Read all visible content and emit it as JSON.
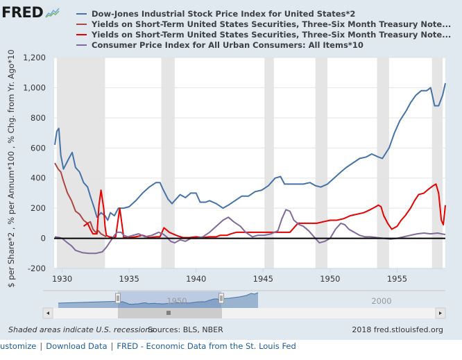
{
  "logo": {
    "text": "FRED",
    "icon": "chart-line-icon"
  },
  "legend": [
    {
      "label": "Dow-Jones Industrial Stock Price Index for United States*2",
      "color": "#4572a7"
    },
    {
      "label": "Yields on Short-Term United States Securities, Three-Six Month Treasury Note...",
      "color": "#aa4643"
    },
    {
      "label": "Yields on Short-Term United States Securities, Three-Six Month Treasury Note...",
      "color": "#e60000"
    },
    {
      "label": "Consumer Price Index for All Urban Consumers: All Items*10",
      "color": "#80699b"
    }
  ],
  "footer": {
    "recessions_note": "Shaded areas indicate U.S. recessions",
    "sources": "Sources: BLS, NBER",
    "copyright": "2018 fred.stlouisfed.org"
  },
  "links": [
    {
      "label": "ustomize"
    },
    {
      "label": "Download Data"
    },
    {
      "label": "FRED - Economic Data from the St. Louis Fed"
    }
  ],
  "link_separator": "|",
  "navigator": {
    "labels": [
      "1950",
      "2000"
    ],
    "range_start_year": 1929.4,
    "range_end_year": 1958.6,
    "handle_glyph": "||",
    "scrollbar_grip": "|||"
  },
  "chart_data": {
    "type": "line",
    "title": "",
    "xlabel": "",
    "ylabel": "$ per Share*2 , % per Annum*100 , % Chg. from Yr. Ago*10",
    "xlim": [
      1929.4,
      1958.6
    ],
    "ylim": [
      -200,
      1200
    ],
    "yticks": [
      -200,
      0,
      200,
      400,
      600,
      800,
      1000,
      1200
    ],
    "ytick_labels": [
      "-200",
      "0",
      "200",
      "400",
      "600",
      "800",
      "1,000",
      "1,200"
    ],
    "xticks": [
      1930,
      1935,
      1940,
      1945,
      1950,
      1955
    ],
    "xtick_labels": [
      "1930",
      "1935",
      "1940",
      "1945",
      "1950",
      "1955"
    ],
    "grid": true,
    "zero_line": true,
    "legend_position": "top",
    "recessions": [
      [
        1929.6,
        1933.2
      ],
      [
        1937.4,
        1938.4
      ],
      [
        1945.1,
        1945.8
      ],
      [
        1948.9,
        1949.8
      ],
      [
        1953.5,
        1954.4
      ],
      [
        1957.6,
        1958.4
      ]
    ],
    "series": [
      {
        "name": "Dow-Jones Industrial Stock Price Index for United States*2",
        "color": "#4572a7",
        "x": [
          1929.45,
          1929.6,
          1929.75,
          1929.9,
          1930.1,
          1930.5,
          1930.75,
          1931.0,
          1931.3,
          1931.6,
          1931.9,
          1932.1,
          1932.4,
          1932.6,
          1932.9,
          1933.2,
          1933.4,
          1933.6,
          1933.9,
          1934.2,
          1934.6,
          1935.0,
          1935.5,
          1936.0,
          1936.5,
          1937.0,
          1937.3,
          1937.5,
          1937.9,
          1938.2,
          1938.5,
          1938.8,
          1939.2,
          1939.6,
          1940.0,
          1940.3,
          1940.7,
          1941.0,
          1941.5,
          1942.0,
          1942.4,
          1942.9,
          1943.4,
          1943.9,
          1944.4,
          1944.9,
          1945.4,
          1945.9,
          1946.3,
          1946.6,
          1947.0,
          1947.5,
          1948.0,
          1948.5,
          1948.9,
          1949.3,
          1949.8,
          1950.3,
          1950.8,
          1951.2,
          1951.7,
          1952.2,
          1952.7,
          1953.1,
          1953.6,
          1953.9,
          1954.4,
          1954.8,
          1955.2,
          1955.7,
          1956.0,
          1956.4,
          1956.8,
          1957.2,
          1957.5,
          1957.8,
          1958.1,
          1958.4,
          1958.6
        ],
        "values": [
          620,
          710,
          730,
          550,
          460,
          530,
          570,
          470,
          440,
          370,
          340,
          280,
          200,
          140,
          170,
          150,
          120,
          170,
          150,
          200,
          200,
          210,
          250,
          300,
          340,
          370,
          370,
          330,
          260,
          230,
          260,
          290,
          270,
          300,
          300,
          240,
          240,
          250,
          230,
          200,
          220,
          250,
          280,
          280,
          310,
          320,
          350,
          400,
          410,
          360,
          360,
          360,
          360,
          370,
          350,
          340,
          360,
          400,
          440,
          470,
          500,
          530,
          540,
          560,
          540,
          530,
          600,
          700,
          780,
          850,
          900,
          950,
          980,
          980,
          1000,
          880,
          880,
          950,
          1030
        ]
      },
      {
        "name": "Yields on Short-Term United States Securities, Three-Six Month Treasury Note... (1)",
        "color": "#aa4643",
        "x": [
          1929.45,
          1929.7,
          1929.9,
          1930.1,
          1930.4,
          1930.7,
          1931.0,
          1931.3,
          1931.6,
          1931.9,
          1932.1,
          1932.3,
          1932.5,
          1932.7,
          1932.9,
          1933.1,
          1933.3
        ],
        "values": [
          500,
          460,
          440,
          380,
          300,
          250,
          180,
          160,
          120,
          100,
          110,
          60,
          40,
          50,
          30,
          20,
          10
        ]
      },
      {
        "name": "Yields on Short-Term United States Securities, Three-Six Month Treasury Note... (2)",
        "color": "#e60000",
        "x": [
          1931.6,
          1931.9,
          1932.1,
          1932.3,
          1932.6,
          1932.75,
          1932.9,
          1933.1,
          1933.2,
          1933.3,
          1933.5,
          1933.8,
          1934.0,
          1934.3,
          1934.6,
          1935.0,
          1935.5,
          1936.0,
          1936.5,
          1937.0,
          1937.3,
          1937.6,
          1938.0,
          1938.5,
          1939.0,
          1939.5,
          1940.0,
          1940.5,
          1941.0,
          1941.5,
          1941.8,
          1942.0,
          1942.3,
          1942.6,
          1943.0,
          1944.0,
          1945.0,
          1946.0,
          1947.0,
          1947.3,
          1947.6,
          1948.0,
          1948.5,
          1949.0,
          1949.5,
          1950.0,
          1950.5,
          1951.0,
          1951.5,
          1952.0,
          1952.5,
          1953.0,
          1953.4,
          1953.6,
          1953.8,
          1954.0,
          1954.3,
          1954.6,
          1955.0,
          1955.3,
          1955.6,
          1956.0,
          1956.3,
          1956.6,
          1957.0,
          1957.4,
          1957.7,
          1957.9,
          1958.1,
          1958.3,
          1958.45,
          1958.6
        ],
        "values": [
          80,
          100,
          60,
          30,
          30,
          220,
          320,
          200,
          80,
          20,
          10,
          5,
          10,
          200,
          5,
          5,
          10,
          20,
          5,
          10,
          10,
          70,
          40,
          20,
          5,
          5,
          10,
          5,
          10,
          10,
          20,
          20,
          20,
          30,
          40,
          40,
          40,
          40,
          40,
          70,
          100,
          100,
          100,
          100,
          110,
          120,
          120,
          130,
          150,
          160,
          170,
          190,
          210,
          220,
          210,
          150,
          100,
          60,
          80,
          120,
          150,
          200,
          250,
          290,
          300,
          330,
          350,
          360,
          300,
          120,
          90,
          220
        ]
      },
      {
        "name": "Consumer Price Index for All Urban Consumers: All Items*10",
        "color": "#80699b",
        "x": [
          1929.45,
          1929.8,
          1930.0,
          1930.4,
          1930.7,
          1931.0,
          1931.5,
          1932.0,
          1932.5,
          1933.0,
          1933.3,
          1933.6,
          1933.9,
          1934.1,
          1934.4,
          1934.6,
          1934.9,
          1935.3,
          1935.7,
          1936.2,
          1936.7,
          1937.2,
          1937.5,
          1937.8,
          1938.1,
          1938.4,
          1938.8,
          1939.2,
          1939.6,
          1940.0,
          1940.5,
          1941.0,
          1941.5,
          1942.0,
          1942.4,
          1942.8,
          1943.3,
          1943.7,
          1944.2,
          1944.6,
          1945.1,
          1945.6,
          1946.1,
          1946.4,
          1946.7,
          1947.0,
          1947.3,
          1947.7,
          1948.0,
          1948.4,
          1948.8,
          1949.2,
          1949.6,
          1950.0,
          1950.4,
          1950.8,
          1951.1,
          1951.4,
          1951.8,
          1952.2,
          1952.6,
          1953.0,
          1953.5,
          1954.0,
          1954.5,
          1955.0,
          1955.5,
          1956.0,
          1956.5,
          1957.0,
          1957.5,
          1958.0,
          1958.6
        ],
        "values": [
          10,
          5,
          0,
          -30,
          -50,
          -80,
          -95,
          -100,
          -100,
          -90,
          -60,
          -20,
          20,
          40,
          40,
          20,
          10,
          20,
          30,
          10,
          20,
          40,
          30,
          10,
          -20,
          -30,
          -10,
          -20,
          0,
          0,
          10,
          40,
          80,
          120,
          140,
          110,
          80,
          40,
          10,
          20,
          20,
          30,
          50,
          130,
          190,
          180,
          120,
          90,
          80,
          50,
          10,
          -30,
          -20,
          0,
          60,
          100,
          90,
          60,
          40,
          20,
          10,
          10,
          5,
          0,
          -5,
          0,
          10,
          20,
          30,
          35,
          30,
          35,
          25
        ]
      }
    ]
  }
}
